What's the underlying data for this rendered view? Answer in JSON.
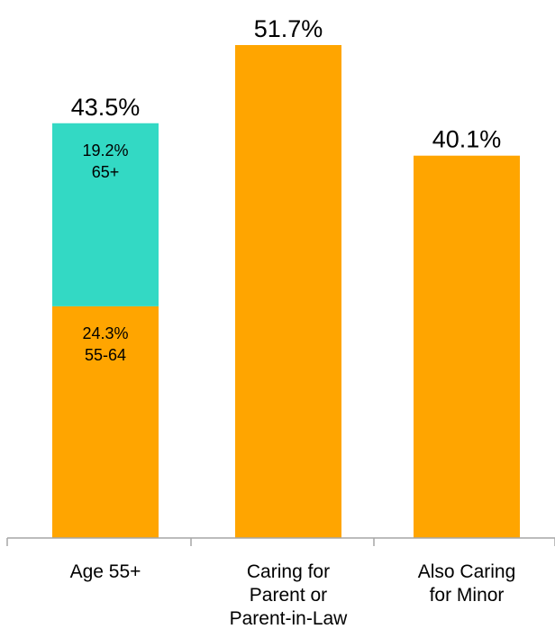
{
  "chart_data": {
    "type": "bar",
    "stacked": true,
    "categories": [
      [
        "Age 55+"
      ],
      [
        "Caring for",
        "Parent or",
        "Parent-in-Law"
      ],
      [
        "Also Caring",
        "for Minor"
      ]
    ],
    "totals": [
      "43.5%",
      "51.7%",
      "40.1%"
    ],
    "total_values": [
      43.5,
      51.7,
      40.1
    ],
    "bars": [
      {
        "segments": [
          {
            "value": 24.3,
            "label_value": "24.3%",
            "label_name": "55-64",
            "color": "#FFA500"
          },
          {
            "value": 19.2,
            "label_value": "19.2%",
            "label_name": "65+",
            "color": "#33D9C4"
          }
        ]
      },
      {
        "segments": [
          {
            "value": 51.7,
            "color": "#FFA500"
          }
        ]
      },
      {
        "segments": [
          {
            "value": 40.1,
            "color": "#FFA500"
          }
        ]
      }
    ],
    "ylim": [
      0,
      51.7
    ],
    "grid": false,
    "legend": "none",
    "colors": {
      "primary": "#FFA500",
      "secondary": "#33D9C4",
      "axis": "#A6A6A6"
    }
  }
}
